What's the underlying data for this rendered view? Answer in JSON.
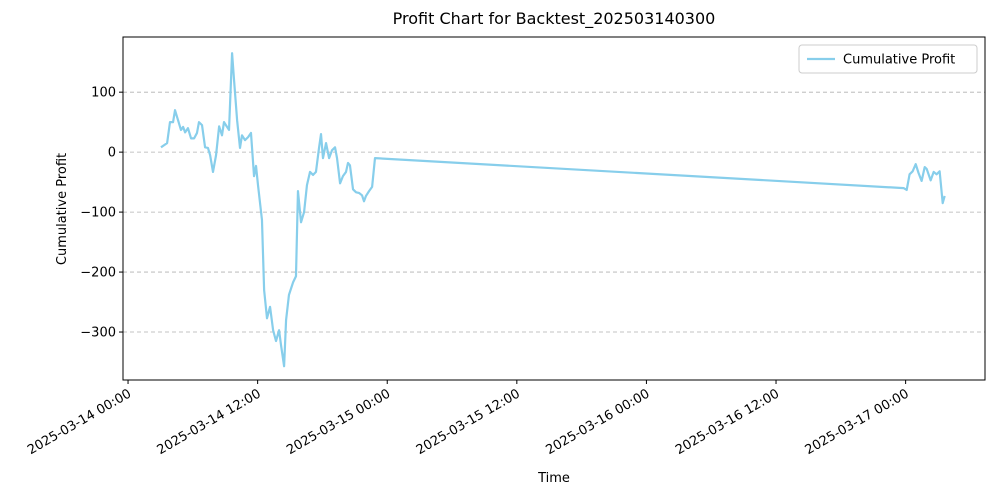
{
  "chart_data": {
    "type": "line",
    "title": "Profit Chart for Backtest_202503140300",
    "x_label": "Time",
    "y_label": "Cumulative Profit",
    "x": [
      "2025-03-14 03:03",
      "2025-03-14 03:37",
      "2025-03-14 03:53",
      "2025-03-14 04:10",
      "2025-03-14 04:21",
      "2025-03-14 04:38",
      "2025-03-14 04:54",
      "2025-03-14 05:06",
      "2025-03-14 05:17",
      "2025-03-14 05:33",
      "2025-03-14 05:50",
      "2025-03-14 06:07",
      "2025-03-14 06:23",
      "2025-03-14 06:34",
      "2025-03-14 06:51",
      "2025-03-14 07:08",
      "2025-03-14 07:24",
      "2025-03-14 07:36",
      "2025-03-14 07:52",
      "2025-03-14 08:09",
      "2025-03-14 08:26",
      "2025-03-14 08:42",
      "2025-03-14 08:53",
      "2025-03-14 09:21",
      "2025-03-14 09:38",
      "2025-03-14 09:49",
      "2025-03-14 10:06",
      "2025-03-14 10:22",
      "2025-03-14 10:33",
      "2025-03-14 10:50",
      "2025-03-14 11:07",
      "2025-03-14 11:23",
      "2025-03-14 11:40",
      "2025-03-14 11:51",
      "2025-03-14 12:02",
      "2025-03-14 12:24",
      "2025-03-14 12:36",
      "2025-03-14 12:52",
      "2025-03-14 13:09",
      "2025-03-14 13:26",
      "2025-03-14 13:42",
      "2025-03-14 13:59",
      "2025-03-14 14:10",
      "2025-03-14 14:27",
      "2025-03-14 14:38",
      "2025-03-14 14:54",
      "2025-03-14 15:17",
      "2025-03-14 15:33",
      "2025-03-14 15:44",
      "2025-03-14 16:01",
      "2025-03-14 16:18",
      "2025-03-14 16:34",
      "2025-03-14 16:51",
      "2025-03-14 17:08",
      "2025-03-14 17:24",
      "2025-03-14 17:41",
      "2025-03-14 17:52",
      "2025-03-14 18:03",
      "2025-03-14 18:20",
      "2025-03-14 18:37",
      "2025-03-14 18:53",
      "2025-03-14 19:10",
      "2025-03-14 19:21",
      "2025-03-14 19:38",
      "2025-03-14 19:54",
      "2025-03-14 20:11",
      "2025-03-14 20:22",
      "2025-03-14 20:33",
      "2025-03-14 20:50",
      "2025-03-14 21:07",
      "2025-03-14 21:23",
      "2025-03-14 21:40",
      "2025-03-14 21:51",
      "2025-03-14 22:02",
      "2025-03-14 22:19",
      "2025-03-14 22:36",
      "2025-03-14 22:52",
      "2025-03-16 23:49",
      "2025-03-17 00:06",
      "2025-03-17 00:22",
      "2025-03-17 00:39",
      "2025-03-17 00:56",
      "2025-03-17 01:12",
      "2025-03-17 01:29",
      "2025-03-17 01:46",
      "2025-03-17 01:57",
      "2025-03-17 02:19",
      "2025-03-17 02:36",
      "2025-03-17 02:52",
      "2025-03-17 03:09",
      "2025-03-17 03:26",
      "2025-03-17 03:37"
    ],
    "series": [
      {
        "name": "Cumulative Profit",
        "color": "#87ceeb",
        "values": [
          8,
          15,
          50,
          50,
          70,
          53,
          37,
          42,
          33,
          40,
          23,
          23,
          32,
          50,
          45,
          8,
          7,
          -5,
          -33,
          -5,
          43,
          28,
          50,
          37,
          165,
          120,
          53,
          7,
          28,
          20,
          25,
          32,
          -40,
          -23,
          -55,
          -113,
          -230,
          -277,
          -258,
          -297,
          -315,
          -297,
          -322,
          -357,
          -280,
          -238,
          -217,
          -207,
          -65,
          -117,
          -100,
          -55,
          -33,
          -38,
          -33,
          7,
          30,
          -10,
          15,
          -10,
          3,
          8,
          -10,
          -52,
          -40,
          -33,
          -18,
          -22,
          -62,
          -67,
          -68,
          -72,
          -82,
          -73,
          -65,
          -58,
          -10,
          -60,
          -63,
          -37,
          -32,
          -20,
          -35,
          -48,
          -25,
          -28,
          -47,
          -33,
          -37,
          -32,
          -85,
          -73
        ]
      }
    ],
    "xlim": [
      "2025-03-13 23:32",
      "2025-03-17 07:21"
    ],
    "xticks": [
      "2025-03-14 00:00",
      "2025-03-14 12:00",
      "2025-03-15 00:00",
      "2025-03-15 12:00",
      "2025-03-16 00:00",
      "2025-03-16 12:00",
      "2025-03-17 00:00"
    ],
    "ylim": [
      -380,
      192
    ],
    "yticks": [
      {
        "value": -300,
        "label": "−300"
      },
      {
        "value": -200,
        "label": "−200"
      },
      {
        "value": -100,
        "label": "−100"
      },
      0,
      100
    ],
    "grid": true,
    "legend": "upper right"
  }
}
